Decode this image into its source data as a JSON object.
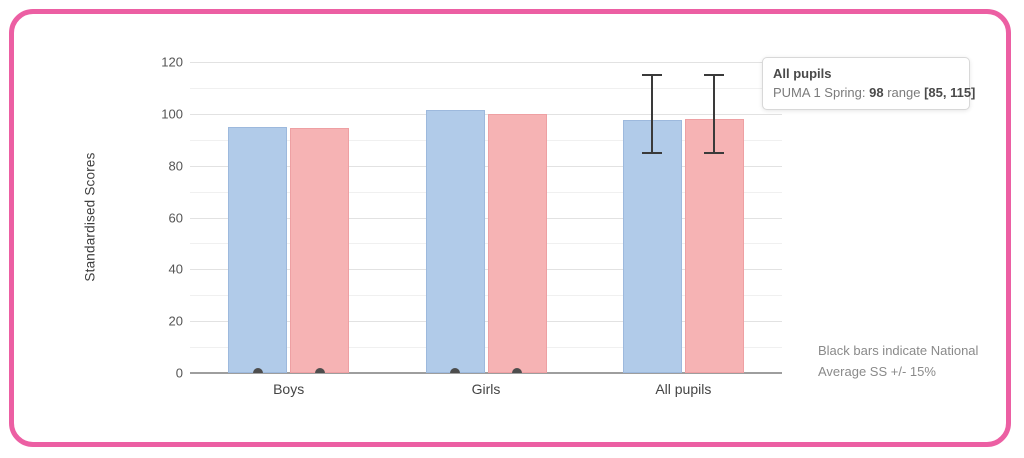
{
  "frame": {
    "border_color": "#ec5fa3"
  },
  "chart_data": {
    "type": "bar",
    "title": "",
    "categories": [
      "Boys",
      "Girls",
      "All pupils"
    ],
    "series": [
      {
        "name": "blue-series",
        "color": "#b1cbe9",
        "border_color": "#9db9dd",
        "values": [
          95,
          101.5,
          97.5
        ]
      },
      {
        "name": "pink-series-puma-1-spring",
        "color": "#f6b3b4",
        "border_color": "#eea0a3",
        "values": [
          94.5,
          100,
          98
        ]
      }
    ],
    "error_bars": {
      "category": "All pupils",
      "low": 85,
      "high": 115,
      "color": "#3a3a3a"
    },
    "zero_marker_categories": [
      "Boys",
      "Girls"
    ],
    "xlabel": "",
    "ylabel": "Standardised Scores",
    "ylim": [
      0,
      120
    ],
    "ytick_step": 20,
    "grid_step": 10,
    "grid": true,
    "legend_position": "none"
  },
  "tooltip": {
    "title": "All pupils",
    "series_label": "PUMA 1 Spring: ",
    "value": "98",
    "range_word": " range ",
    "range": "[85, 115]"
  },
  "note": {
    "line1": "Black bars indicate National",
    "line2": "Average SS +/- 15%"
  }
}
